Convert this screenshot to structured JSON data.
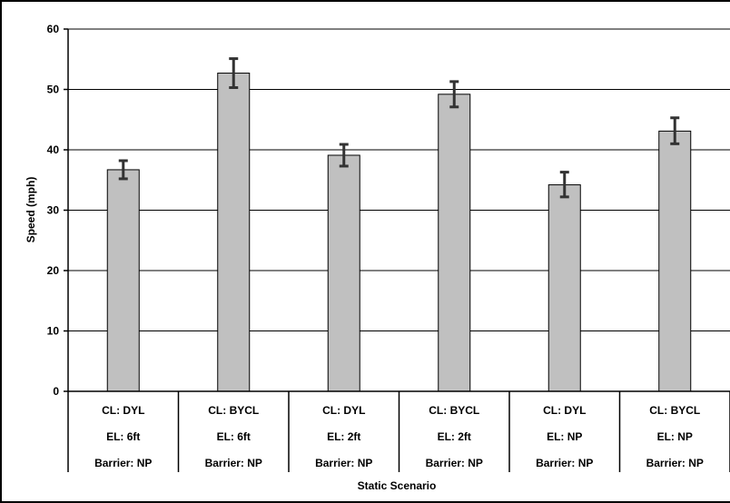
{
  "chart_data": {
    "type": "bar",
    "xlabel": "Static Scenario",
    "ylabel": "Speed (mph)",
    "ylim": [
      0,
      60
    ],
    "yticks": [
      0,
      10,
      20,
      30,
      40,
      50,
      60
    ],
    "grid": true,
    "categories": [
      [
        "CL: DYL",
        "EL: 6ft",
        "Barrier: NP"
      ],
      [
        "CL: BYCL",
        "EL: 6ft",
        "Barrier: NP"
      ],
      [
        "CL: DYL",
        "EL: 2ft",
        "Barrier: NP"
      ],
      [
        "CL: BYCL",
        "EL: 2ft",
        "Barrier: NP"
      ],
      [
        "CL: DYL",
        "EL: NP",
        "Barrier: NP"
      ],
      [
        "CL: BYCL",
        "EL: NP",
        "Barrier: NP"
      ]
    ],
    "values": [
      36.7,
      52.7,
      39.1,
      49.2,
      34.2,
      43.1
    ],
    "error_low": [
      35.2,
      50.3,
      37.3,
      47.1,
      32.2,
      41.0
    ],
    "error_high": [
      38.2,
      55.1,
      40.9,
      51.3,
      36.3,
      45.3
    ],
    "colors": {
      "bar_fill": "#c0c0c0",
      "bar_stroke": "#000000",
      "error_bar": "#333333",
      "grid": "#000000"
    }
  }
}
